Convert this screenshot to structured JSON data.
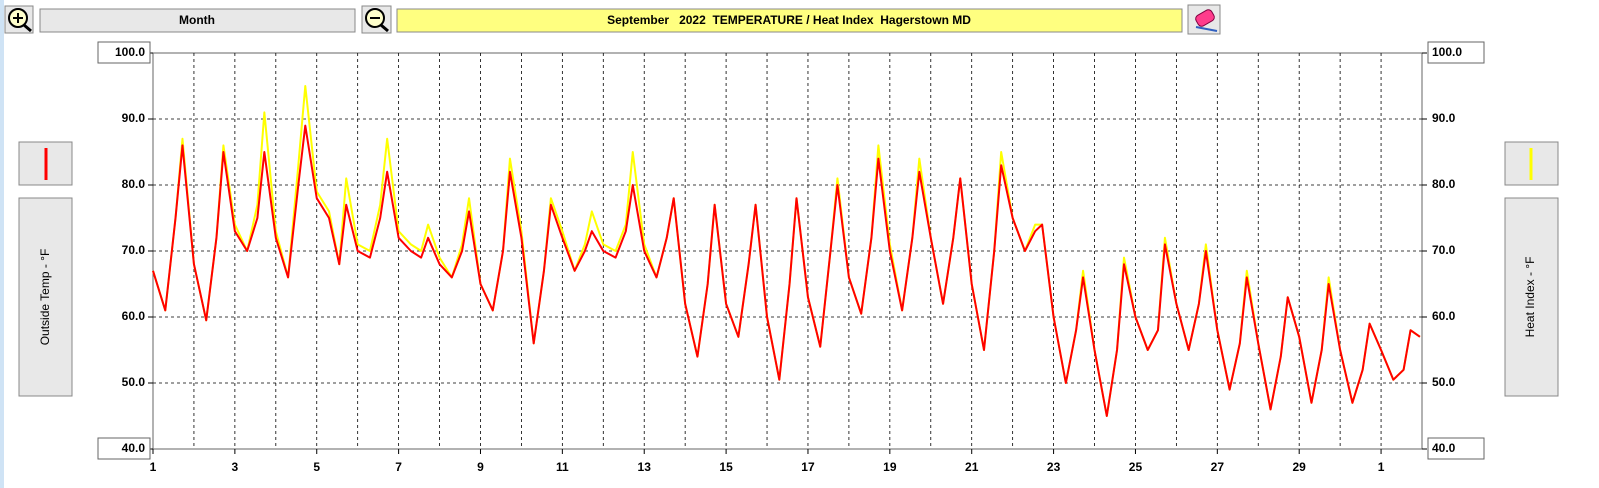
{
  "toolbar": {
    "range": "Month"
  },
  "chart_data": {
    "type": "line",
    "title": "September   2022  TEMPERATURE / Heat Index  Hagerstown MD",
    "ylabel": "Outside Temp - °F",
    "y2label": "Heat Index - °F",
    "x": [
      1,
      1.3,
      1.55,
      1.72,
      2,
      2.3,
      2.55,
      2.72,
      3,
      3.3,
      3.55,
      3.72,
      4,
      4.3,
      4.55,
      4.72,
      5,
      5.3,
      5.55,
      5.72,
      6,
      6.3,
      6.55,
      6.72,
      7,
      7.3,
      7.55,
      7.72,
      8,
      8.3,
      8.55,
      8.72,
      9,
      9.3,
      9.55,
      9.72,
      10,
      10.3,
      10.55,
      10.72,
      11,
      11.3,
      11.55,
      11.72,
      12,
      12.3,
      12.55,
      12.72,
      13,
      13.3,
      13.55,
      13.72,
      14,
      14.3,
      14.55,
      14.72,
      15,
      15.3,
      15.55,
      15.72,
      16,
      16.3,
      16.55,
      16.72,
      17,
      17.3,
      17.55,
      17.72,
      18,
      18.3,
      18.55,
      18.72,
      19,
      19.3,
      19.55,
      19.72,
      20,
      20.3,
      20.55,
      20.72,
      21,
      21.3,
      21.55,
      21.72,
      22,
      22.3,
      22.55,
      22.72,
      23,
      23.3,
      23.55,
      23.72,
      24,
      24.3,
      24.55,
      24.72,
      25,
      25.3,
      25.55,
      25.72,
      26,
      26.3,
      26.55,
      26.72,
      27,
      27.3,
      27.55,
      27.72,
      28,
      28.3,
      28.55,
      28.72,
      29,
      29.3,
      29.55,
      29.72,
      30,
      30.3,
      30.55,
      30.72,
      31,
      31.3,
      31.55,
      31.72,
      31.95
    ],
    "series": [
      {
        "color": "#ffff00",
        "axis": "y2",
        "values": [
          67,
          61,
          75,
          87,
          68,
          59.5,
          72,
          86,
          74,
          70,
          77,
          91,
          73,
          66,
          83,
          95,
          79,
          76,
          68,
          81,
          71,
          70,
          77,
          87,
          73,
          71,
          70,
          74,
          69,
          66,
          71,
          78,
          65,
          61,
          70,
          84,
          73,
          56,
          67,
          78,
          73,
          67,
          71,
          76,
          71,
          70,
          74,
          85,
          71,
          66,
          72,
          78,
          62,
          54,
          65,
          77,
          62,
          57,
          68,
          77,
          60,
          50.5,
          65,
          78,
          63,
          55.5,
          70,
          81,
          66,
          60.5,
          72,
          86,
          71,
          61,
          72,
          84,
          72,
          62,
          72,
          81,
          65,
          55,
          70,
          85,
          75,
          70,
          74,
          74,
          60,
          50,
          58,
          67,
          55,
          45,
          55,
          69,
          60,
          55,
          58,
          72,
          62,
          55,
          62,
          71,
          58,
          49,
          56,
          67,
          56,
          46,
          54,
          63,
          57,
          47,
          55,
          66,
          55,
          47,
          52,
          59,
          55,
          50.5,
          52,
          58,
          57
        ]
      },
      {
        "color": "#ff0000",
        "values": [
          67,
          61,
          75,
          86,
          68,
          59.5,
          72,
          85,
          73,
          70,
          75,
          85,
          72,
          66,
          80,
          89,
          78,
          75,
          68,
          77,
          70,
          69,
          75,
          82,
          72,
          70,
          69,
          72,
          68,
          66,
          70,
          76,
          65,
          61,
          70,
          82,
          72,
          56,
          67,
          77,
          72,
          67,
          70,
          73,
          70,
          69,
          73,
          80,
          70,
          66,
          72,
          78,
          62,
          54,
          65,
          77,
          62,
          57,
          68,
          77,
          60,
          50.5,
          65,
          78,
          63,
          55.5,
          70,
          80,
          66,
          60.5,
          72,
          84,
          70,
          61,
          72,
          82,
          72,
          62,
          72,
          81,
          65,
          55,
          70,
          83,
          75,
          70,
          73,
          74,
          60,
          50,
          58,
          66,
          55,
          45,
          55,
          68,
          60,
          55,
          58,
          71,
          62,
          55,
          62,
          70,
          58,
          49,
          56,
          66,
          56,
          46,
          54,
          63,
          57,
          47,
          55,
          65,
          55,
          47,
          52,
          59,
          55,
          50.5,
          52,
          58,
          57
        ]
      }
    ],
    "xlim": [
      1,
      32
    ],
    "xticks": [
      1,
      3,
      5,
      7,
      9,
      11,
      13,
      15,
      17,
      19,
      21,
      23,
      25,
      27,
      29,
      {
        "value": 31,
        "label": "1"
      }
    ],
    "xgrid": [
      2,
      3,
      4,
      5,
      6,
      7,
      8,
      9,
      10,
      11,
      12,
      13,
      14,
      15,
      16,
      17,
      18,
      19,
      20,
      21,
      22,
      23,
      24,
      25,
      26,
      27,
      28,
      29,
      30,
      31
    ],
    "ylim": [
      40,
      100
    ],
    "yticks": [
      {
        "value": 40,
        "label": "40.0"
      },
      {
        "value": 50,
        "label": "50.0"
      },
      {
        "value": 60,
        "label": "60.0"
      },
      {
        "value": 70,
        "label": "70.0"
      },
      {
        "value": 80,
        "label": "80.0"
      },
      {
        "value": 90,
        "label": "90.0"
      },
      {
        "value": 100,
        "label": "100.0"
      }
    ],
    "y2lim": [
      40,
      100
    ],
    "y2ticks": [
      {
        "value": 40,
        "label": "40.0"
      },
      {
        "value": 50,
        "label": "50.0"
      },
      {
        "value": 60,
        "label": "60.0"
      },
      {
        "value": 70,
        "label": "70.0"
      },
      {
        "value": 80,
        "label": "80.0"
      },
      {
        "value": 90,
        "label": "90.0"
      },
      {
        "value": 100,
        "label": "100.0"
      }
    ],
    "grid": true
  }
}
